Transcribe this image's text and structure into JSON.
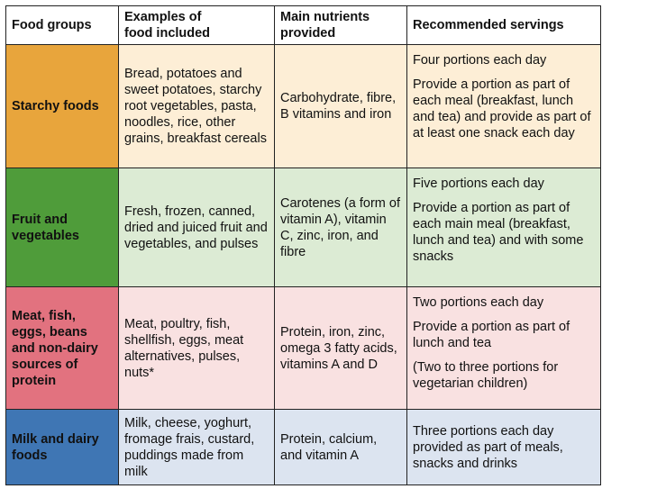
{
  "header": {
    "food_groups": "Food groups",
    "examples": "Examples of\nfood included",
    "nutrients": "Main nutrients\nprovided",
    "servings": "Recommended servings"
  },
  "rows": [
    {
      "group": "Starchy foods",
      "examples": "Bread, potatoes and sweet potatoes, starchy root vegetables, pasta, noodles, rice, other grains, breakfast cereals",
      "nutrients": "Carbohydrate, fibre, B vitamins and iron",
      "servings": [
        "Four portions each day",
        "Provide a portion as part of each meal (breakfast, lunch and tea) and provide as part of at least one snack each day"
      ],
      "color": "#e8a53c",
      "tint": "#fdeed6"
    },
    {
      "group": "Fruit and vegetables",
      "examples": "Fresh, frozen, canned, dried and juiced fruit and vegetables, and pulses",
      "nutrients": "Carotenes (a form of vitamin A), vitamin C, zinc, iron, and fibre",
      "servings": [
        "Five portions each day",
        "Provide a portion as part of each main meal (breakfast, lunch and tea) and with some snacks"
      ],
      "color": "#4f9c3a",
      "tint": "#dcebd4"
    },
    {
      "group": "Meat, fish, eggs, beans and non-dairy sources of protein",
      "examples": "Meat, poultry, fish, shellfish, eggs, meat alternatives, pulses, nuts*",
      "nutrients": "Protein, iron, zinc, omega 3 fatty acids, vitamins A and D",
      "servings": [
        "Two portions each day",
        "Provide a portion as part of lunch and tea",
        "(Two to three portions for vegetarian children)"
      ],
      "color": "#e2727f",
      "tint": "#f9e1e1"
    },
    {
      "group": "Milk and dairy foods",
      "examples": "Milk, cheese, yoghurt, fromage frais, custard, puddings made from milk",
      "nutrients": "Protein, calcium, and vitamin A",
      "servings": [
        "Three portions each day provided as part of meals, snacks and drinks"
      ],
      "color": "#3f76b4",
      "tint": "#dce4f0"
    }
  ]
}
